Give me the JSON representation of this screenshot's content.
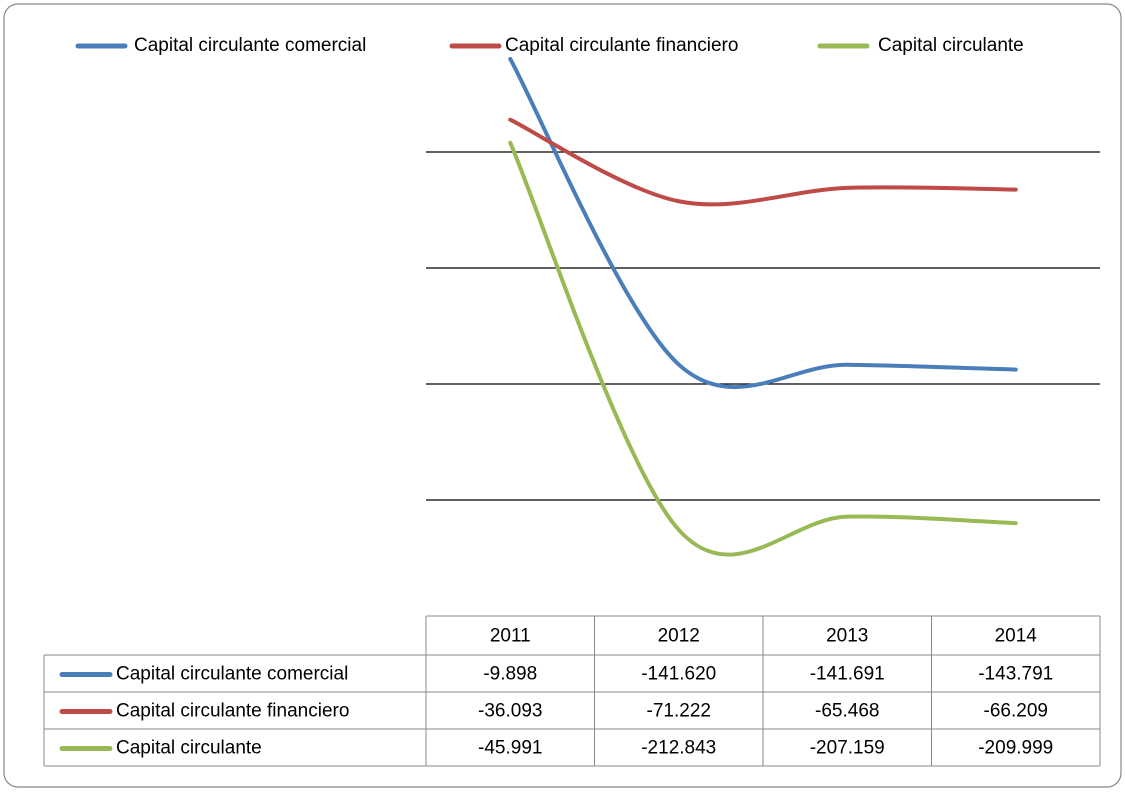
{
  "chart_data": {
    "type": "line",
    "smooth": true,
    "grid": true,
    "legend": "top",
    "categories": [
      "2011",
      "2012",
      "2013",
      "2014"
    ],
    "ylim": [
      -250,
      0
    ],
    "yticks": [
      -50,
      -100,
      -150,
      -200
    ],
    "series": [
      {
        "name": "Capital circulante comercial",
        "color": "#4a7ebb",
        "values": [
          -9.898,
          -141.62,
          -141.691,
          -143.791
        ],
        "value_labels": [
          "-9.898",
          "-141.620",
          "-141.691",
          "-143.791"
        ]
      },
      {
        "name": "Capital circulante financiero",
        "color": "#be4b48",
        "values": [
          -36.093,
          -71.222,
          -65.468,
          -66.209
        ],
        "value_labels": [
          "-36.093",
          "-71.222",
          "-65.468",
          "-66.209"
        ]
      },
      {
        "name": "Capital circulante",
        "color": "#98b954",
        "values": [
          -45.991,
          -212.843,
          -207.159,
          -209.999
        ],
        "value_labels": [
          "-45.991",
          "-212.843",
          "-207.159",
          "-209.999"
        ]
      }
    ]
  }
}
